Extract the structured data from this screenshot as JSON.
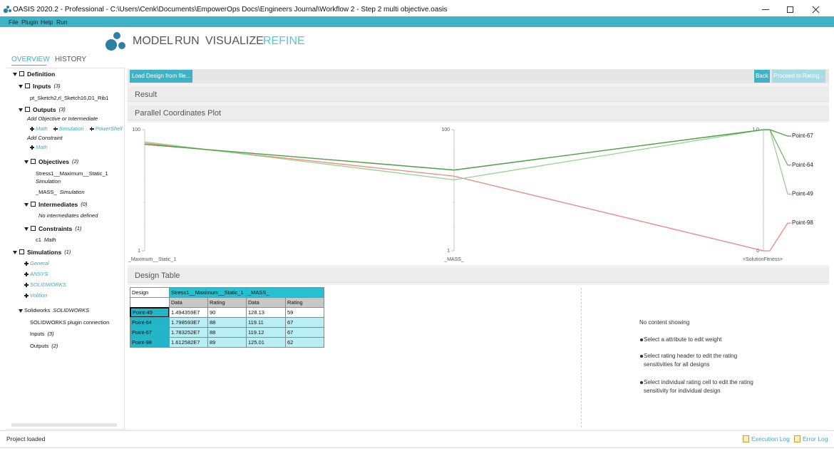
{
  "window_title": "OASIS 2020.2 - Professional - C:\\Users\\Cenk\\Documents\\EmpowerOps Docs\\Engineers Journal\\Workflow 2 - Step 2 multi objective.oasis",
  "menu": [
    "File",
    "Plugin",
    "Help",
    "Run"
  ],
  "nav": {
    "items": [
      "MODEL",
      "RUN",
      "VISUALIZE",
      "REFINE"
    ],
    "active": 3
  },
  "sidebar": {
    "tabs": [
      "OVERVIEW",
      "HISTORY"
    ],
    "active_tab": 0,
    "tree": [
      {
        "text": "Definition"
      },
      {
        "text": "Inputs",
        "note": "(3)"
      },
      {
        "text": "pt_Sketch2,rl_Sketch16,D1_Rib1"
      },
      {
        "text": "Outputs",
        "note": "(3)"
      },
      {
        "text": "Add Objective or Intermediate"
      },
      {
        "links": [
          "Math",
          "Simulation",
          "PowerShell"
        ]
      },
      {
        "text": "Add Constraint"
      },
      {
        "links": [
          "Math"
        ]
      },
      {
        "text": "Objectives",
        "note": "(2)"
      },
      {
        "text": "Stress1__Maximum__Static_1",
        "note": "Simulation"
      },
      {
        "text": "_MASS_",
        "note": "Simulation"
      },
      {
        "text": "Intermediates",
        "note": "(0)"
      },
      {
        "text": "No intermediates defined"
      },
      {
        "text": "Constraints",
        "note": "(1)"
      },
      {
        "text": "c1",
        "note": "Math"
      },
      {
        "text": "Simulations",
        "note": "(1)"
      },
      {
        "links": [
          "General"
        ]
      },
      {
        "links": [
          "ANSYS"
        ]
      },
      {
        "links": [
          "SOLIDWORKS"
        ]
      },
      {
        "links": [
          "Volition"
        ]
      },
      {
        "text": "Solidworks",
        "note": "SOLIDWORKS"
      },
      {
        "text": "SOLIDWORKS plugin connection"
      },
      {
        "text": "Inputs",
        "note": "(3)"
      },
      {
        "text": "Outputs",
        "note": "(2)"
      }
    ]
  },
  "toolbar": {
    "load": "Load Design from file...",
    "back": "Back",
    "proceed": "Proceed to Rating..."
  },
  "sections": {
    "result": "Result",
    "plot": "Parallel Coordinates Plot",
    "table": "Design Table"
  },
  "plot": {
    "axes": [
      {
        "label": "_Maximum__Static_1",
        "min": 1,
        "max": 100,
        "ticks": [
          1,
          100
        ]
      },
      {
        "label": "_MASS_",
        "min": 1,
        "max": 100,
        "ticks": [
          1,
          100
        ]
      },
      {
        "label": "<SolutionFitness>",
        "min": 0,
        "max": 1,
        "ticks": [
          0,
          {
            "value": 1,
            "label": "1.0"
          }
        ]
      }
    ],
    "series": [
      {
        "name": "Point-67",
        "color": "#4c9f47",
        "values": [
          88,
          67,
          1
        ]
      },
      {
        "name": "Point-64",
        "color": "#6db866",
        "values": [
          88,
          67,
          1
        ]
      },
      {
        "name": "Point-49",
        "color": "#93d38c",
        "values": [
          90,
          59,
          1
        ]
      },
      {
        "name": "Point-98",
        "color": "#f4847f",
        "values": [
          89,
          62,
          0
        ]
      }
    ]
  },
  "table": {
    "header": [
      "Design",
      "Stress1__Maximum__Static_1",
      "_MASS_"
    ],
    "subheader": [
      "Data",
      "Rating",
      "Data",
      "Rating"
    ],
    "rows": [
      [
        "Point-49",
        "1.494359E7",
        "90",
        "128.13",
        "59"
      ],
      [
        "Point-64",
        "1.798593E7",
        "88",
        "119.11",
        "67"
      ],
      [
        "Point-67",
        "1.783252E7",
        "88",
        "119.12",
        "67"
      ],
      [
        "Point-98",
        "1.612582E7",
        "89",
        "125.01",
        "62"
      ]
    ]
  },
  "info": [
    "No content showing",
    "Select a attribute to edit weight",
    "Select rating header to edit the rating sensitivities for all designs",
    "Select individual rating cell to edit the rating sensitivity for individual design"
  ],
  "status": {
    "message": "Project loaded",
    "links": [
      "Execution Log",
      "Error Log"
    ]
  }
}
